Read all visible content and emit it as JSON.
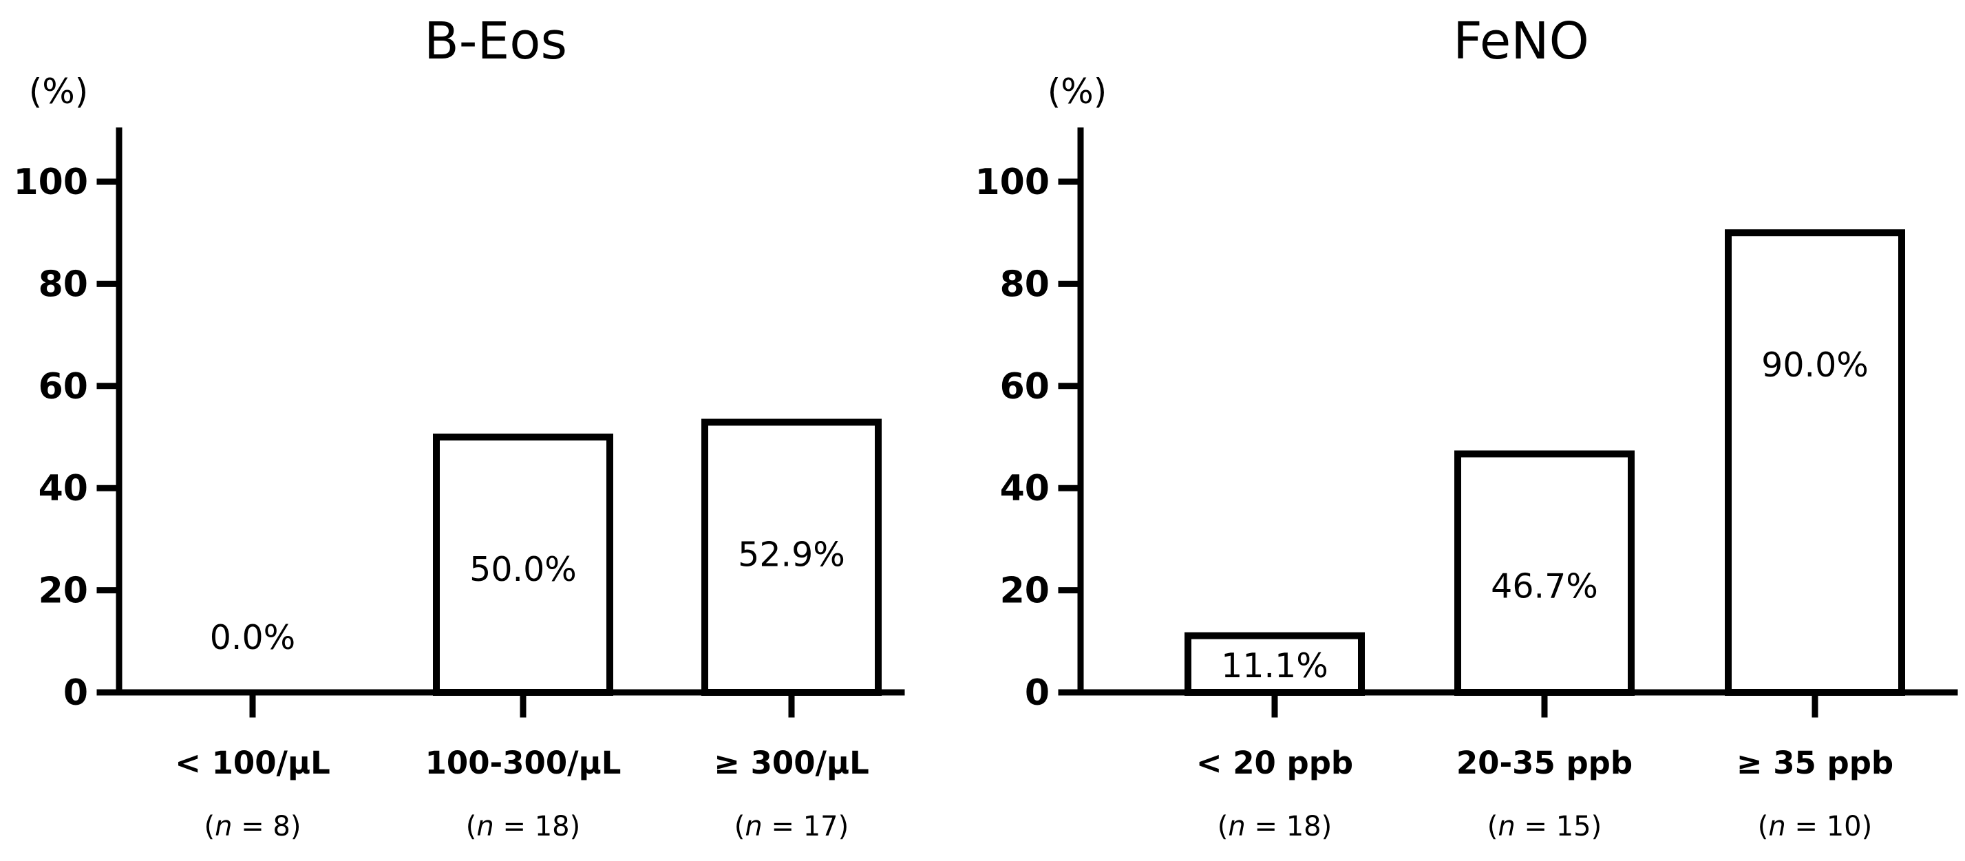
{
  "chart_data": [
    {
      "type": "bar",
      "title": "B-Eos",
      "ylabel": "(%)",
      "ylim": [
        0,
        110
      ],
      "yticks": [
        "0",
        "20",
        "40",
        "60",
        "80",
        "100"
      ],
      "categories": [
        "< 100/µL",
        "100-300/µL",
        "≥ 300/µL"
      ],
      "n_labels": [
        {
          "open": "(",
          "n": "n",
          "rest": " = 8)"
        },
        {
          "open": "(",
          "n": "n",
          "rest": " = 18)"
        },
        {
          "open": "(",
          "n": "n",
          "rest": " = 17)"
        }
      ],
      "values": [
        0.0,
        50.0,
        52.9
      ],
      "data_labels": [
        "0.0%",
        "50.0%",
        "52.9%"
      ],
      "grid": false
    },
    {
      "type": "bar",
      "title": "FeNO",
      "ylabel": "(%)",
      "ylim": [
        0,
        110
      ],
      "yticks": [
        "0",
        "20",
        "40",
        "60",
        "80",
        "100"
      ],
      "categories": [
        "< 20 ppb",
        "20-35 ppb",
        "≥ 35 ppb"
      ],
      "n_labels": [
        {
          "open": "(",
          "n": "n",
          "rest": " = 18)"
        },
        {
          "open": "(",
          "n": "n",
          "rest": " = 15)"
        },
        {
          "open": "(",
          "n": "n",
          "rest": " = 10)"
        }
      ],
      "values": [
        11.1,
        46.7,
        90.0
      ],
      "data_labels": [
        "11.1%",
        "46.7%",
        "90.0%"
      ],
      "grid": false
    }
  ]
}
